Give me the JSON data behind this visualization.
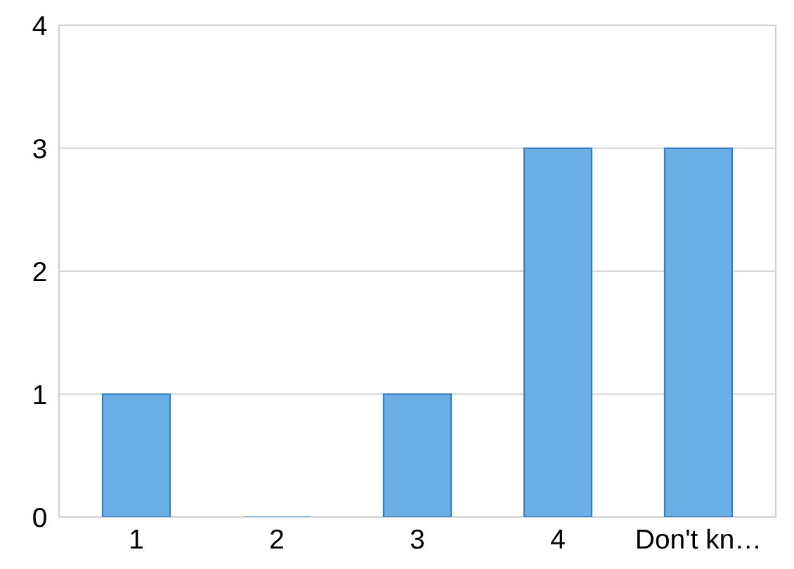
{
  "chart_data": {
    "type": "bar",
    "categories": [
      "1",
      "2",
      "3",
      "4",
      "Don't kn…"
    ],
    "values": [
      1,
      0,
      1,
      3,
      3
    ],
    "color": "#6aafe6",
    "ylim": [
      0,
      4
    ],
    "yticks": [
      0,
      1,
      2,
      3,
      4
    ],
    "grid": "y"
  }
}
